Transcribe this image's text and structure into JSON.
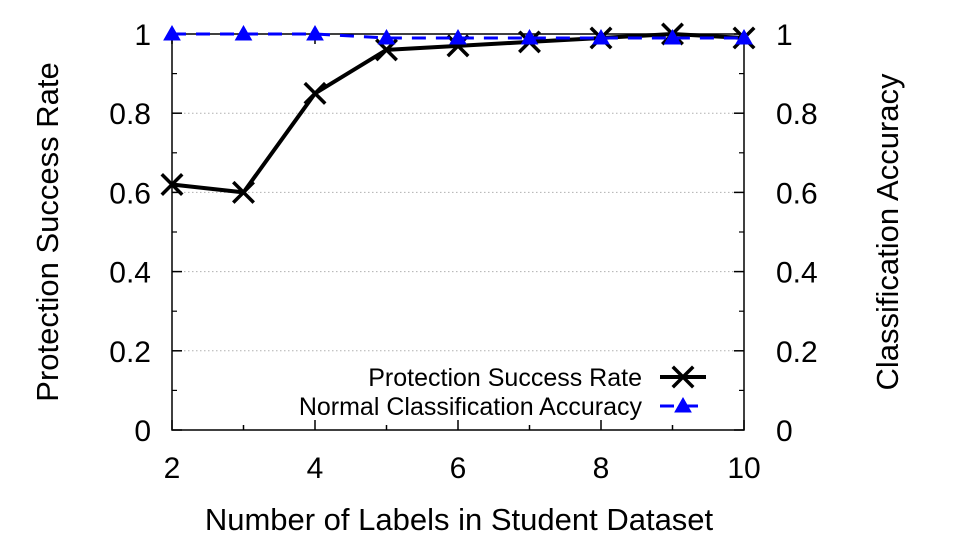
{
  "chart_data": {
    "type": "line",
    "xlabel": "Number of Labels in Student Dataset",
    "ylabel": "Protection Success Rate",
    "y2label": "Classification Accuracy",
    "xlim": [
      2,
      10
    ],
    "ylim": [
      0,
      1
    ],
    "y2lim": [
      0,
      1
    ],
    "x_ticks": [
      2,
      4,
      6,
      8,
      10
    ],
    "y_ticks": [
      0,
      0.2,
      0.4,
      0.6,
      0.8,
      1
    ],
    "y_tick_labels": [
      "0",
      "0.2",
      "0.4",
      "0.6",
      "0.8",
      "1"
    ],
    "y2_ticks": [
      0,
      0.2,
      0.4,
      0.6,
      0.8,
      1
    ],
    "y2_tick_labels": [
      "0",
      "0.2",
      "0.4",
      "0.6",
      "0.8",
      "1"
    ],
    "grid": "horizontal dotted",
    "legend_position": "bottom-right",
    "x": [
      2,
      3,
      4,
      5,
      6,
      7,
      8,
      9,
      10
    ],
    "series": [
      {
        "name": "Protection Success Rate",
        "axis": "left",
        "values": [
          0.62,
          0.6,
          0.85,
          0.96,
          0.97,
          0.98,
          0.99,
          1.0,
          0.99
        ],
        "color": "#000000",
        "marker": "x",
        "line_style": "solid"
      },
      {
        "name": "Normal Classification Accuracy",
        "axis": "right",
        "values": [
          1.0,
          1.0,
          1.0,
          0.99,
          0.99,
          0.99,
          0.99,
          0.99,
          0.99
        ],
        "color": "#0000ff",
        "marker": "triangle",
        "line_style": "dashed"
      }
    ]
  }
}
